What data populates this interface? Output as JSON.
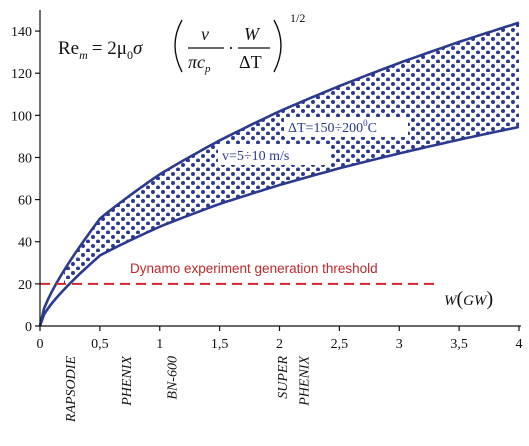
{
  "chart_data": {
    "type": "area",
    "x_axis": {
      "label_var": "W",
      "label_unit": "GW",
      "range": [
        0,
        4
      ],
      "ticks": [
        {
          "value": 0,
          "label": "0"
        },
        {
          "value": 0.5,
          "label": "0,5"
        },
        {
          "value": 1,
          "label": "1"
        },
        {
          "value": 1.5,
          "label": "1,5"
        },
        {
          "value": 2,
          "label": "2"
        },
        {
          "value": 2.5,
          "label": "2,5"
        },
        {
          "value": 3,
          "label": "3"
        },
        {
          "value": 3.5,
          "label": "3,5"
        },
        {
          "value": 4,
          "label": "4"
        }
      ]
    },
    "y_axis": {
      "range": [
        0,
        150
      ],
      "ticks": [
        {
          "value": 0,
          "label": "0"
        },
        {
          "value": 20,
          "label": "20"
        },
        {
          "value": 40,
          "label": "40"
        },
        {
          "value": 60,
          "label": "60"
        },
        {
          "value": 80,
          "label": "80"
        },
        {
          "value": 100,
          "label": "100"
        },
        {
          "value": 120,
          "label": "120"
        },
        {
          "value": 140,
          "label": "140"
        }
      ]
    },
    "upper_curve": {
      "x": [
        0,
        0.5,
        1,
        1.5,
        2,
        2.5,
        3,
        3.5,
        4
      ],
      "y": [
        0,
        51,
        72,
        88,
        102,
        114,
        125,
        135,
        144
      ]
    },
    "lower_curve": {
      "x": [
        0,
        0.5,
        1,
        1.5,
        2,
        2.5,
        3,
        3.5,
        4
      ],
      "y": [
        0,
        33.5,
        47,
        58,
        67,
        75,
        82,
        88.5,
        94.5
      ]
    },
    "threshold": {
      "y": 20,
      "x_start": 0,
      "x_end": 3.3,
      "label": "Dynamo experiment generation threshold"
    },
    "annotations": {
      "delta_t": "ΔT=150÷200",
      "delta_t_sup": "0",
      "delta_t_unit": "C",
      "velocity": "v=5÷10 m/s"
    },
    "formula": {
      "lhs": "Re",
      "lhs_sub": "m",
      "eq": "= 2μ",
      "mu_sub": "0",
      "sigma": "σ",
      "num1": "ν",
      "den1": "πc",
      "den1_sub": "p",
      "dot": "·",
      "num2": "W",
      "den2": "ΔT",
      "power": "1/2"
    },
    "reactors": [
      {
        "name": "RAPSODIE",
        "x": 0.25
      },
      {
        "name": "PHENIX",
        "x": 0.72
      },
      {
        "name": "BN-600",
        "x": 1.1
      },
      {
        "name": "SUPER",
        "x": 2.02
      },
      {
        "name": "PHENIX",
        "x": 2.2
      }
    ]
  }
}
